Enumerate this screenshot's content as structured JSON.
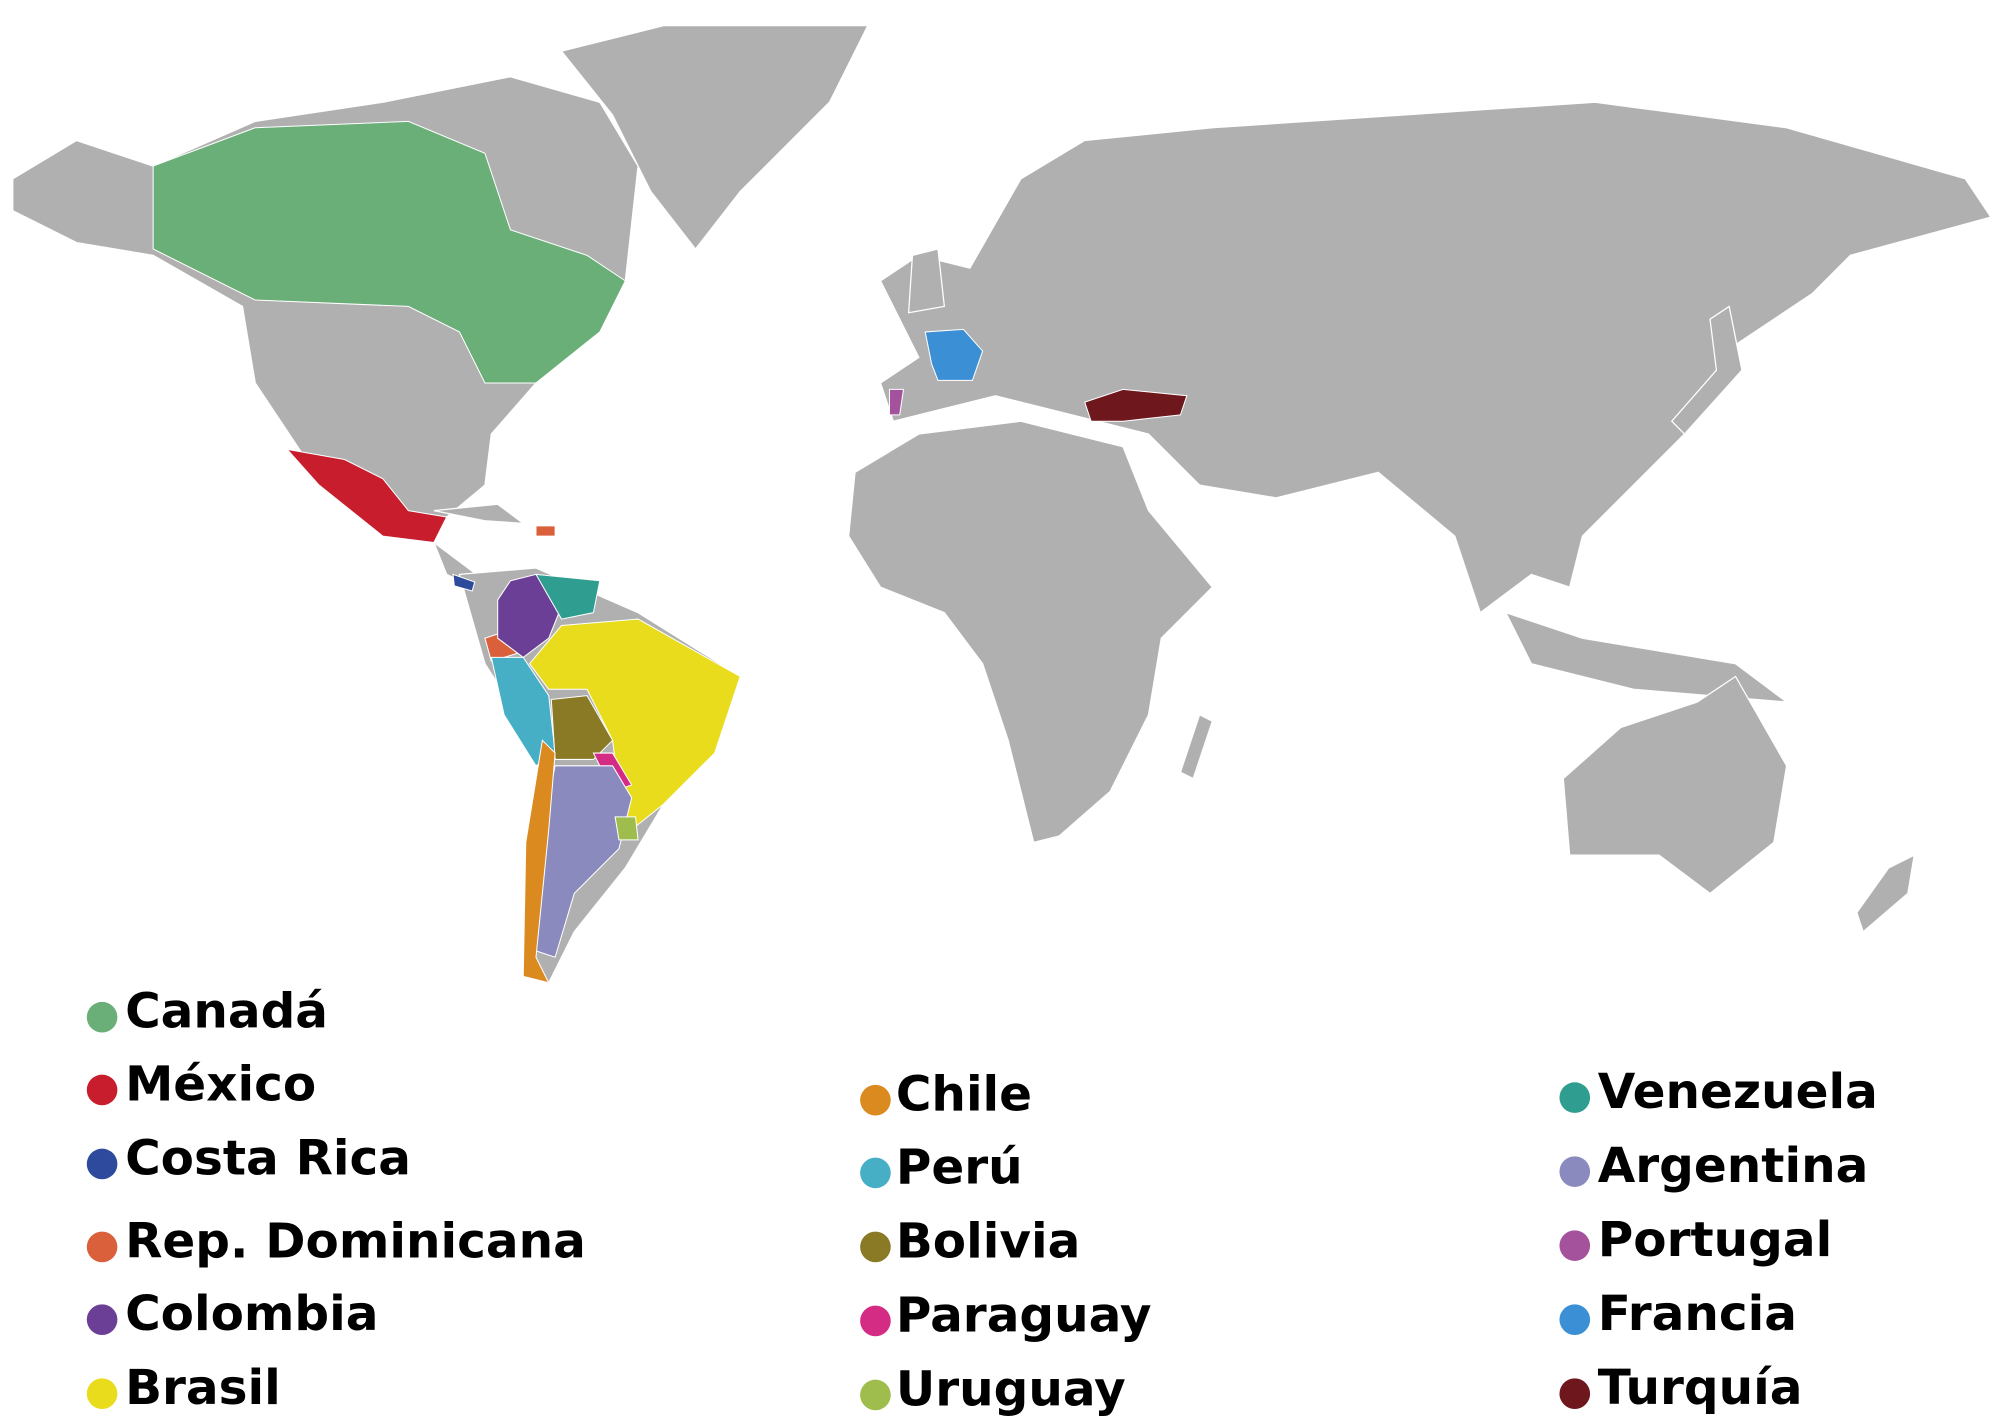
{
  "legend": [
    {
      "label": "Canadá",
      "color": "#6aae78"
    },
    {
      "label": "México",
      "color": "#c81d2d"
    },
    {
      "label": "Costa Rica",
      "color": "#2e4a9c"
    },
    {
      "label": "Rep. Dominicana",
      "color": "#d9603a"
    },
    {
      "label": "Colombia",
      "color": "#6c3f97"
    },
    {
      "label": "Brasil",
      "color": "#e8dc1c"
    },
    {
      "label": "Chile",
      "color": "#db8a1f"
    },
    {
      "label": "Perú",
      "color": "#46afc6"
    },
    {
      "label": "Bolivia",
      "color": "#8a7a26"
    },
    {
      "label": "Paraguay",
      "color": "#d42b85"
    },
    {
      "label": "Uruguay",
      "color": "#9ebd4c"
    },
    {
      "label": "Venezuela",
      "color": "#2f9e90"
    },
    {
      "label": "Argentina",
      "color": "#8a8abf"
    },
    {
      "label": "Portugal",
      "color": "#a5529c"
    },
    {
      "label": "Francia",
      "color": "#3b8fd4"
    },
    {
      "label": "Turquía",
      "color": "#6e171c"
    }
  ]
}
